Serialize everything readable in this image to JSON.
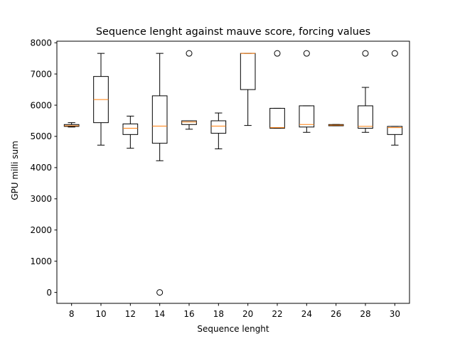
{
  "chart_data": {
    "type": "box",
    "title": "Sequence lenght against mauve score, forcing values",
    "xlabel": "Sequence lenght",
    "ylabel": "GPU milli sum",
    "categories": [
      "8",
      "10",
      "12",
      "14",
      "16",
      "18",
      "20",
      "22",
      "24",
      "26",
      "28",
      "30"
    ],
    "ylim": [
      -350,
      8050
    ],
    "yticks": [
      0,
      1000,
      2000,
      3000,
      4000,
      5000,
      6000,
      7000,
      8000
    ],
    "boxes": [
      {
        "category": "8",
        "whislo": 5300,
        "q1": 5320,
        "med": 5340,
        "q3": 5380,
        "whishi": 5440,
        "fliers": []
      },
      {
        "category": "10",
        "whislo": 4720,
        "q1": 5440,
        "med": 6180,
        "q3": 6920,
        "whishi": 7660,
        "fliers": []
      },
      {
        "category": "12",
        "whislo": 4620,
        "q1": 5060,
        "med": 5260,
        "q3": 5400,
        "whishi": 5650,
        "fliers": []
      },
      {
        "category": "14",
        "whislo": 4220,
        "q1": 4780,
        "med": 5330,
        "q3": 6300,
        "whishi": 7660,
        "fliers": [
          0
        ]
      },
      {
        "category": "16",
        "whislo": 5230,
        "q1": 5380,
        "med": 5460,
        "q3": 5500,
        "whishi": 5500,
        "fliers": [
          7660
        ]
      },
      {
        "category": "18",
        "whislo": 4600,
        "q1": 5100,
        "med": 5330,
        "q3": 5500,
        "whishi": 5750,
        "fliers": []
      },
      {
        "category": "20",
        "whislo": 5350,
        "q1": 6500,
        "med": 7660,
        "q3": 7660,
        "whishi": 7660,
        "fliers": []
      },
      {
        "category": "22",
        "whislo": 5260,
        "q1": 5260,
        "med": 5280,
        "q3": 5900,
        "whishi": 5900,
        "fliers": [
          7660
        ]
      },
      {
        "category": "24",
        "whislo": 5130,
        "q1": 5300,
        "med": 5380,
        "q3": 5980,
        "whishi": 5980,
        "fliers": [
          7660
        ]
      },
      {
        "category": "26",
        "whislo": 5340,
        "q1": 5340,
        "med": 5360,
        "q3": 5380,
        "whishi": 5380,
        "fliers": []
      },
      {
        "category": "28",
        "whislo": 5130,
        "q1": 5260,
        "med": 5320,
        "q3": 5980,
        "whishi": 6570,
        "fliers": [
          7660
        ]
      },
      {
        "category": "30",
        "whislo": 4720,
        "q1": 5060,
        "med": 5280,
        "q3": 5320,
        "whishi": 5320,
        "fliers": [
          7660
        ]
      }
    ],
    "colors": {
      "box": "#000000",
      "median": "#ff7f0e",
      "flier": "#000000"
    },
    "grid": false,
    "legend": "none"
  }
}
